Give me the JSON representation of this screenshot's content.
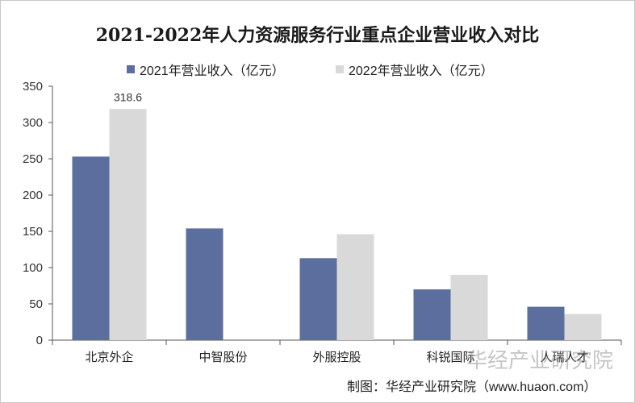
{
  "chart_data": {
    "type": "bar",
    "title": "2021-2022年人力资源服务行业重点企业营业收入对比",
    "categories": [
      "北京外企",
      "中智股份",
      "外服控股",
      "科锐国际",
      "人瑞人才"
    ],
    "series": [
      {
        "name": "2021年营业收入（亿元）",
        "color": "#5b6e9e",
        "values": [
          253,
          154,
          113,
          70,
          46
        ]
      },
      {
        "name": "2022年营业收入（亿元）",
        "color": "#d9d9d9",
        "values": [
          318.6,
          null,
          146,
          90,
          36
        ]
      }
    ],
    "data_labels": [
      {
        "series": 1,
        "category": 0,
        "text": "318.6"
      }
    ],
    "y_ticks": [
      "0",
      "50",
      "100",
      "150",
      "200",
      "250",
      "300",
      "350"
    ],
    "ylim": [
      0,
      350
    ],
    "grid": false,
    "legend_position": "top"
  },
  "source": "制图：华经产业研究院（www.huaon.com）",
  "watermark": "华经产业研究院"
}
